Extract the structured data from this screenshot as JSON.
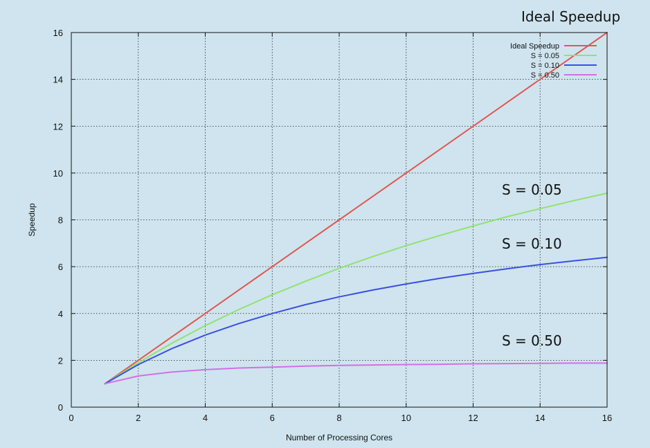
{
  "colors": {
    "background": "#cfe4ee",
    "ideal": "#e0574f",
    "s005": "#8fe36e",
    "s010": "#3a4fe0",
    "s050": "#d46ee8",
    "grid": "#222222"
  },
  "chart_data": {
    "type": "line",
    "xlabel": "Number of Processing Cores",
    "ylabel": "Speedup",
    "xlim": [
      0,
      16
    ],
    "ylim": [
      0,
      16
    ],
    "xticks": [
      "0",
      "2",
      "4",
      "6",
      "8",
      "10",
      "12",
      "14",
      "16"
    ],
    "yticks": [
      "0",
      "2",
      "4",
      "6",
      "8",
      "10",
      "12",
      "14",
      "16"
    ],
    "grid": true,
    "legend_position": "top-right",
    "x": [
      1,
      2,
      3,
      4,
      5,
      6,
      7,
      8,
      9,
      10,
      11,
      12,
      13,
      14,
      15,
      16
    ],
    "series": [
      {
        "name": "Ideal Speedup",
        "color": "#e0574f",
        "values": [
          1,
          2,
          3,
          4,
          5,
          6,
          7,
          8,
          9,
          10,
          11,
          12,
          13,
          14,
          15,
          16
        ]
      },
      {
        "name": "S = 0.05",
        "color": "#8fe36e",
        "values": [
          1.0,
          1.9,
          2.73,
          3.48,
          4.17,
          4.8,
          5.38,
          5.93,
          6.43,
          6.9,
          7.33,
          7.74,
          8.13,
          8.48,
          8.82,
          9.14
        ]
      },
      {
        "name": "S = 0.10",
        "color": "#3a4fe0",
        "values": [
          1.0,
          1.82,
          2.5,
          3.08,
          3.57,
          4.0,
          4.38,
          4.71,
          5.0,
          5.26,
          5.5,
          5.71,
          5.91,
          6.09,
          6.25,
          6.4
        ]
      },
      {
        "name": "S = 0.50",
        "color": "#d46ee8",
        "values": [
          1.0,
          1.33,
          1.5,
          1.6,
          1.67,
          1.71,
          1.75,
          1.78,
          1.8,
          1.82,
          1.83,
          1.85,
          1.86,
          1.87,
          1.88,
          1.88
        ]
      }
    ],
    "annotations": [
      "Ideal Speedup",
      "S = 0.05",
      "S = 0.10",
      "S = 0.50"
    ]
  }
}
